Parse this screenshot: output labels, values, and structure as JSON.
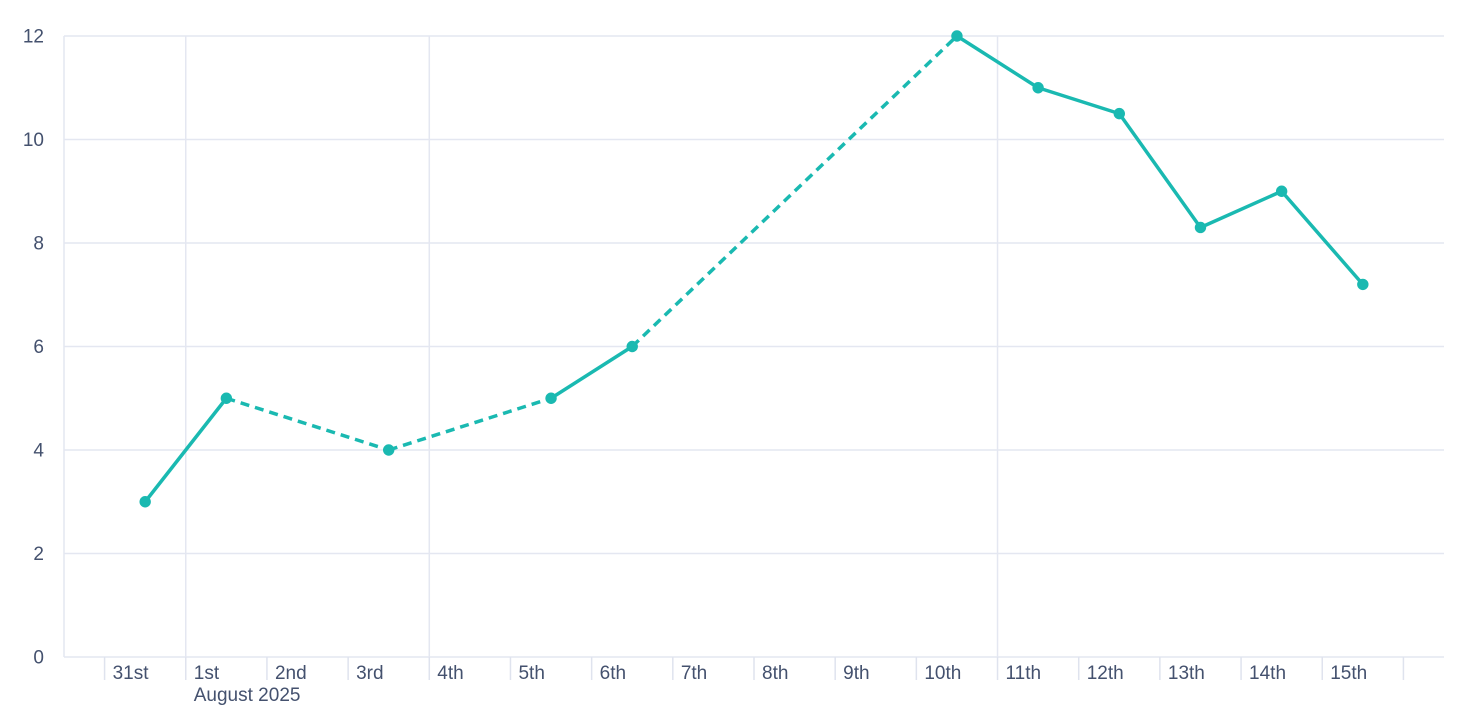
{
  "chart_data": {
    "type": "line",
    "title": "",
    "x_axis": {
      "kind": "time",
      "serial_0_date": "Jul 30",
      "domain_serials": [
        0.5,
        17.5
      ],
      "tick_labels": [
        "31st",
        "1st",
        "2nd",
        "3rd",
        "4th",
        "5th",
        "6th",
        "7th",
        "8th",
        "9th",
        "10th",
        "11th",
        "12th",
        "13th",
        "14th",
        "15th"
      ],
      "label_serials": [
        1,
        2,
        3,
        4,
        5,
        6,
        7,
        8,
        9,
        10,
        11,
        12,
        13,
        14,
        15,
        16
      ],
      "tick_serials": [
        1,
        2,
        3,
        4,
        5,
        6,
        7,
        8,
        9,
        10,
        11,
        12,
        13,
        14,
        15,
        16,
        17
      ],
      "gridline_serials": [
        2,
        5,
        12
      ],
      "month_label": "August 2025",
      "month_label_serial": 2
    },
    "y_axis": {
      "range": [
        0,
        12
      ],
      "tick_values": [
        0,
        2,
        4,
        6,
        8,
        10,
        12
      ],
      "tick_labels": [
        "0",
        "2",
        "4",
        "6",
        "8",
        "10",
        "12"
      ],
      "grid": true
    },
    "series": [
      {
        "name": "daily-value",
        "color": "#1ab9b1",
        "marker": "circle",
        "gap_rendering": "dashed-interpolation",
        "points": [
          {
            "date": "Jul 31",
            "day_serial": 1,
            "value": 3
          },
          {
            "date": "Aug 1",
            "day_serial": 2,
            "value": 5
          },
          {
            "date": "Aug 3",
            "day_serial": 4,
            "value": 4
          },
          {
            "date": "Aug 5",
            "day_serial": 6,
            "value": 5
          },
          {
            "date": "Aug 6",
            "day_serial": 7,
            "value": 6
          },
          {
            "date": "Aug 10",
            "day_serial": 11,
            "value": 12
          },
          {
            "date": "Aug 11",
            "day_serial": 12,
            "value": 11
          },
          {
            "date": "Aug 12",
            "day_serial": 13,
            "value": 10.5
          },
          {
            "date": "Aug 13",
            "day_serial": 14,
            "value": 8.3
          },
          {
            "date": "Aug 14",
            "day_serial": 15,
            "value": 9
          },
          {
            "date": "Aug 15",
            "day_serial": 16,
            "value": 7.2
          }
        ]
      }
    ],
    "legend": null,
    "colors": {
      "line": "#1ab9b1",
      "grid": "#e4e7f1",
      "tick": "#dfe3ee",
      "text": "#44516e",
      "background": "#ffffff"
    }
  }
}
